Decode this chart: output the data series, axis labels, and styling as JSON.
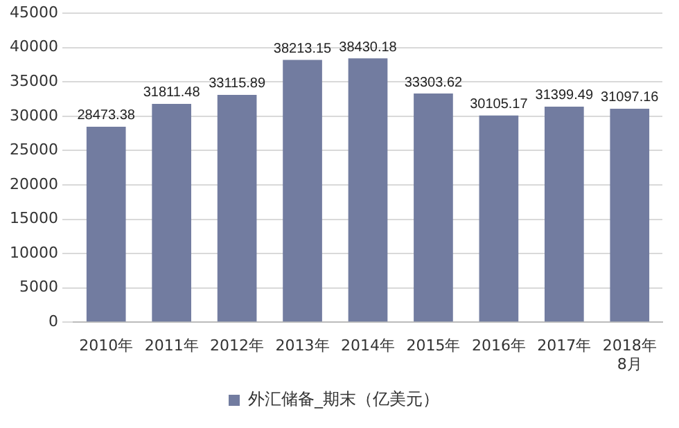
{
  "chart_data": {
    "type": "bar",
    "categories": [
      "2010年",
      "2011年",
      "2012年",
      "2013年",
      "2014年",
      "2015年",
      "2016年",
      "2017年",
      "2018年8月"
    ],
    "series": [
      {
        "name": "外汇储备_期末（亿美元）",
        "color": "#727ca0",
        "values": [
          28473.38,
          31811.48,
          33115.89,
          38213.15,
          38430.18,
          33303.62,
          30105.17,
          31399.49,
          31097.16
        ]
      }
    ],
    "ylim": [
      0,
      45000
    ],
    "yticks": [
      0,
      5000,
      10000,
      15000,
      20000,
      25000,
      30000,
      35000,
      40000,
      45000
    ],
    "grid": "y",
    "legend": "bottom",
    "data_labels": true
  }
}
